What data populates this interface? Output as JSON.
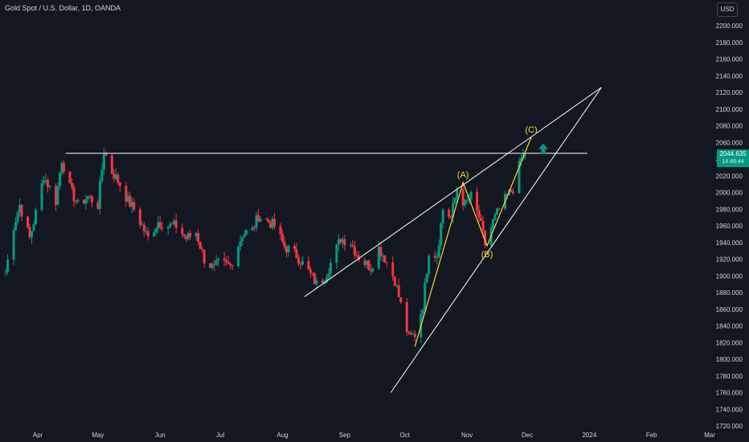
{
  "header": {
    "title": "Gold Spot / U.S. Dollar, 1D, OANDA",
    "currency_button": "USD"
  },
  "last_price": {
    "value": "2044.635",
    "countdown": "14:48:44"
  },
  "colors": {
    "background": "#131722",
    "up_candle": "#089981",
    "down_candle": "#f23645",
    "trendline": "#ffffff",
    "wave_line": "#fdd835",
    "wave_label": "#fdd835",
    "price_tag": "#089981",
    "axis_text": "#d1d4dc",
    "grid": "#1e222d"
  },
  "chart_data": {
    "type": "candlestick",
    "title": "Gold Spot / U.S. Dollar, 1D, OANDA",
    "grid": false,
    "y_axis": {
      "position": "right",
      "range": [
        1720,
        2230
      ],
      "ticks": [
        1720,
        1740,
        1760,
        1780,
        1800,
        1820,
        1840,
        1860,
        1880,
        1900,
        1920,
        1940,
        1960,
        1980,
        2000,
        2020,
        2040,
        2060,
        2080,
        2100,
        2120,
        2140,
        2160,
        2180,
        2200
      ],
      "tick_labels": [
        "1720.000",
        "1740.000",
        "1760.000",
        "1780.000",
        "1800.000",
        "1820.000",
        "1840.000",
        "1860.000",
        "1880.000",
        "1900.000",
        "1920.000",
        "1940.000",
        "1960.000",
        "1980.000",
        "2000.000",
        "2020.000",
        "2040.000",
        "2060.000",
        "2080.000",
        "2100.000",
        "2120.000",
        "2140.000",
        "2160.000",
        "2180.000",
        "2200.000"
      ]
    },
    "x_axis": {
      "range": [
        "2023-03-16",
        "2024-03-15"
      ],
      "ticks": [
        "2023-04-01",
        "2023-05-01",
        "2023-06-01",
        "2023-07-01",
        "2023-08-01",
        "2023-09-01",
        "2023-10-01",
        "2023-11-01",
        "2023-12-01",
        "2024-01-01",
        "2024-02-01",
        "2024-03-01"
      ],
      "tick_labels": [
        "Apr",
        "May",
        "Jun",
        "Jul",
        "Aug",
        "Sep",
        "Oct",
        "Nov",
        "Dec",
        "2024",
        "Feb",
        "Mar"
      ]
    },
    "close_series": [
      [
        "2023-03-16",
        1905
      ],
      [
        "2023-03-20",
        1960
      ],
      [
        "2023-03-23",
        1985
      ],
      [
        "2023-03-28",
        1945
      ],
      [
        "2023-03-31",
        1975
      ],
      [
        "2023-04-04",
        2020
      ],
      [
        "2023-04-10",
        1990
      ],
      [
        "2023-04-13",
        2040
      ],
      [
        "2023-04-17",
        2005
      ],
      [
        "2023-04-21",
        1985
      ],
      [
        "2023-04-26",
        1995
      ],
      [
        "2023-05-01",
        1985
      ],
      [
        "2023-05-04",
        2050
      ],
      [
        "2023-05-08",
        2025
      ],
      [
        "2023-05-12",
        2010
      ],
      [
        "2023-05-16",
        1990
      ],
      [
        "2023-05-19",
        1980
      ],
      [
        "2023-05-24",
        1955
      ],
      [
        "2023-05-26",
        1945
      ],
      [
        "2023-05-31",
        1965
      ],
      [
        "2023-06-05",
        1960
      ],
      [
        "2023-06-09",
        1960
      ],
      [
        "2023-06-14",
        1945
      ],
      [
        "2023-06-19",
        1952
      ],
      [
        "2023-06-23",
        1920
      ],
      [
        "2023-06-28",
        1908
      ],
      [
        "2023-06-30",
        1915
      ],
      [
        "2023-07-06",
        1912
      ],
      [
        "2023-07-12",
        1950
      ],
      [
        "2023-07-17",
        1955
      ],
      [
        "2023-07-20",
        1972
      ],
      [
        "2023-07-25",
        1965
      ],
      [
        "2023-07-28",
        1960
      ],
      [
        "2023-08-02",
        1935
      ],
      [
        "2023-08-08",
        1925
      ],
      [
        "2023-08-14",
        1905
      ],
      [
        "2023-08-18",
        1890
      ],
      [
        "2023-08-22",
        1898
      ],
      [
        "2023-08-25",
        1915
      ],
      [
        "2023-08-30",
        1945
      ],
      [
        "2023-09-04",
        1940
      ],
      [
        "2023-09-08",
        1922
      ],
      [
        "2023-09-14",
        1910
      ],
      [
        "2023-09-18",
        1933
      ],
      [
        "2023-09-21",
        1922
      ],
      [
        "2023-09-26",
        1895
      ],
      [
        "2023-09-29",
        1865
      ],
      [
        "2023-10-03",
        1825
      ],
      [
        "2023-10-06",
        1830
      ],
      [
        "2023-10-10",
        1865
      ],
      [
        "2023-10-13",
        1930
      ],
      [
        "2023-10-17",
        1925
      ],
      [
        "2023-10-20",
        1980
      ],
      [
        "2023-10-24",
        1970
      ],
      [
        "2023-10-27",
        2005
      ],
      [
        "2023-10-31",
        1985
      ],
      [
        "2023-11-03",
        1995
      ],
      [
        "2023-11-07",
        1970
      ],
      [
        "2023-11-10",
        1938
      ],
      [
        "2023-11-14",
        1965
      ],
      [
        "2023-11-17",
        1980
      ],
      [
        "2023-11-21",
        1995
      ],
      [
        "2023-11-24",
        2005
      ],
      [
        "2023-11-28",
        2040
      ],
      [
        "2023-11-30",
        2044.635
      ]
    ],
    "annotations": {
      "wave_labels": [
        {
          "text": "(A)",
          "date": "2023-10-30",
          "price": 2012
        },
        {
          "text": "(B)",
          "date": "2023-11-11",
          "price": 1936
        },
        {
          "text": "(C)",
          "date": "2023-12-03",
          "price": 2066
        }
      ],
      "horizontal_level": {
        "price": 2047,
        "from": "2023-04-15",
        "to": "2023-12-31"
      },
      "trendlines": [
        {
          "from": [
            "2023-08-12",
            1875
          ],
          "to": [
            "2024-01-07",
            2126
          ]
        },
        {
          "from": [
            "2023-09-24",
            1760
          ],
          "to": [
            "2024-01-07",
            2126
          ]
        }
      ],
      "wave_path": [
        [
          "2023-10-06",
          1815
        ],
        [
          "2023-10-30",
          2012
        ],
        [
          "2023-11-11",
          1936
        ],
        [
          "2023-12-03",
          2066
        ]
      ],
      "arrow_up": {
        "date": "2023-12-09",
        "price": 2052
      }
    }
  }
}
